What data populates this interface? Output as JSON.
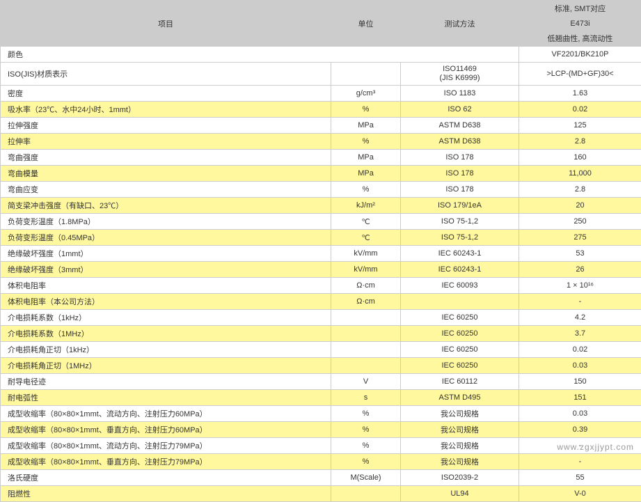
{
  "header": {
    "item": "项目",
    "unit": "单位",
    "method": "测试方法",
    "std_top": "标准, SMT对应",
    "std_mid": "E473i",
    "std_bot": "低翘曲性, 高流动性"
  },
  "rows": [
    {
      "cls": "white",
      "span": 3,
      "item": "颜色",
      "unit": "",
      "method": "",
      "value": "VF2201/BK210P"
    },
    {
      "cls": "white",
      "item": "ISO(JIS)材质表示",
      "unit": "",
      "method": "ISO11469\n(JIS K6999)",
      "value": ">LCP-(MD+GF)30<"
    },
    {
      "cls": "white",
      "item": "密度",
      "unit": "g/cm³",
      "method": "ISO 1183",
      "value": "1.63"
    },
    {
      "cls": "yellow",
      "item": "吸水率（23℃、水中24小时、1mmt）",
      "unit": "%",
      "method": "ISO 62",
      "value": "0.02"
    },
    {
      "cls": "white",
      "item": "拉伸强度",
      "unit": "MPa",
      "method": "ASTM D638",
      "value": "125"
    },
    {
      "cls": "yellow",
      "item": "拉伸率",
      "unit": "%",
      "method": "ASTM D638",
      "value": "2.8"
    },
    {
      "cls": "white",
      "item": "弯曲强度",
      "unit": "MPa",
      "method": "ISO 178",
      "value": "160"
    },
    {
      "cls": "yellow",
      "item": "弯曲模量",
      "unit": "MPa",
      "method": "ISO 178",
      "value": "11,000"
    },
    {
      "cls": "white",
      "item": "弯曲应变",
      "unit": "%",
      "method": "ISO 178",
      "value": "2.8"
    },
    {
      "cls": "yellow",
      "item": "简支梁冲击强度（有缺口、23℃）",
      "unit": "kJ/m²",
      "method": "ISO 179/1eA",
      "value": "20"
    },
    {
      "cls": "white",
      "item": "负荷变形温度（1.8MPa）",
      "unit": "℃",
      "method": "ISO 75-1,2",
      "value": "250"
    },
    {
      "cls": "yellow",
      "item": "负荷变形温度（0.45MPa）",
      "unit": "℃",
      "method": "ISO 75-1,2",
      "value": "275"
    },
    {
      "cls": "white",
      "item": "绝缘破坏强度（1mmt）",
      "unit": "kV/mm",
      "method": "IEC 60243-1",
      "value": "53"
    },
    {
      "cls": "yellow",
      "item": "绝缘破坏强度（3mmt）",
      "unit": "kV/mm",
      "method": "IEC 60243-1",
      "value": "26"
    },
    {
      "cls": "white",
      "item": "体积电阻率",
      "unit": "Ω·cm",
      "method": "IEC 60093",
      "value": "1 × 10¹⁶"
    },
    {
      "cls": "yellow",
      "item": "体积电阻率（本公司方法）",
      "unit": "Ω·cm",
      "method": "",
      "value": "-"
    },
    {
      "cls": "white",
      "item": "介电损耗系数（1kHz）",
      "unit": "",
      "method": "IEC 60250",
      "value": "4.2"
    },
    {
      "cls": "yellow",
      "item": "介电损耗系数（1MHz）",
      "unit": "",
      "method": "IEC 60250",
      "value": "3.7"
    },
    {
      "cls": "white",
      "item": "介电损耗角正切（1kHz）",
      "unit": "",
      "method": "IEC 60250",
      "value": "0.02"
    },
    {
      "cls": "yellow",
      "item": "介电损耗角正切（1MHz）",
      "unit": "",
      "method": "IEC 60250",
      "value": "0.03"
    },
    {
      "cls": "white",
      "item": "耐导电径迹",
      "unit": "V",
      "method": "IEC 60112",
      "value": "150"
    },
    {
      "cls": "yellow",
      "item": "耐电弧性",
      "unit": "s",
      "method": "ASTM D495",
      "value": "151"
    },
    {
      "cls": "white",
      "item": "成型收缩率（80×80×1mmt、流动方向、注射压力60MPa）",
      "unit": "%",
      "method": "我公司规格",
      "value": "0.03"
    },
    {
      "cls": "yellow",
      "item": "成型收缩率（80×80×1mmt、垂直方向、注射压力60MPa）",
      "unit": "%",
      "method": "我公司规格",
      "value": "0.39"
    },
    {
      "cls": "white",
      "item": "成型收缩率（80×80×1mmt、流动方向、注射压力79MPa）",
      "unit": "%",
      "method": "我公司规格",
      "value": "-"
    },
    {
      "cls": "yellow",
      "item": "成型收缩率（80×80×1mmt、垂直方向、注射压力79MPa）",
      "unit": "%",
      "method": "我公司规格",
      "value": "-"
    },
    {
      "cls": "white",
      "item": "洛氏硬度",
      "unit": "M(Scale)",
      "method": "ISO2039-2",
      "value": "55"
    },
    {
      "cls": "yellow",
      "item": "阻燃性",
      "unit": "",
      "method": "UL94",
      "value": "V-0"
    }
  ],
  "watermark": "www.zgxjjypt.com"
}
